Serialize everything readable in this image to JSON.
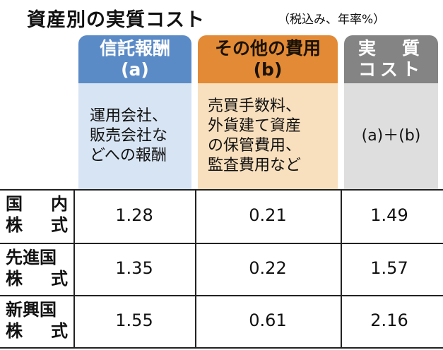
{
  "title": "資産別の実質コスト",
  "note": "（税込み、年率%）",
  "columns": [
    {
      "label": "信託報酬",
      "sub": "(a)",
      "desc_lines": [
        "運用会社、",
        "販売会社な",
        "どへの報酬"
      ],
      "color": "#5b8bc7"
    },
    {
      "label": "その他の費用",
      "sub": "(b)",
      "desc_lines": [
        "売買手数料、",
        "外貨建て資産",
        "の保管費用、",
        "監査費用など"
      ],
      "color": "#e28a36"
    },
    {
      "label": "実　質",
      "sub": "コスト",
      "desc_lines": [
        "(a)＋(b)"
      ],
      "color": "#848484"
    }
  ],
  "rows": [
    {
      "label_top": [
        "国",
        "内"
      ],
      "label_bottom": [
        "株",
        "式"
      ],
      "values": [
        "1.28",
        "0.21",
        "1.49"
      ]
    },
    {
      "label_top": [
        "先進国"
      ],
      "label_bottom": [
        "株",
        "式"
      ],
      "values": [
        "1.35",
        "0.22",
        "1.57"
      ]
    },
    {
      "label_top": [
        "新興国"
      ],
      "label_bottom": [
        "株",
        "式"
      ],
      "values": [
        "1.55",
        "0.61",
        "2.16"
      ]
    }
  ]
}
